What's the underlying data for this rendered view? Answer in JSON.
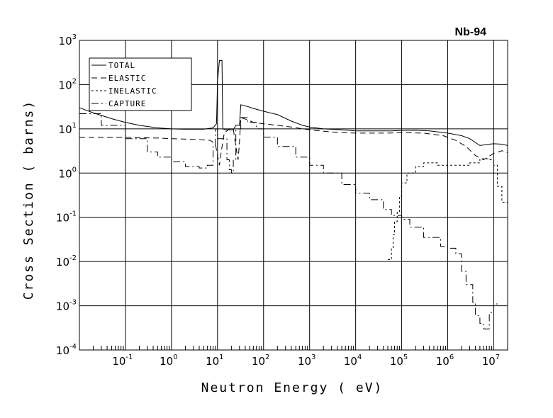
{
  "chart_data": {
    "type": "line",
    "title": "Nb-94",
    "xlabel": "Neutron Energy ( eV)",
    "ylabel": "Cross Section ( barns)",
    "x_scale": "log",
    "y_scale": "log",
    "xlim": [
      0.01,
      20000000
    ],
    "ylim": [
      0.0001,
      1000
    ],
    "grid": true,
    "legend_position": "top-left",
    "x_ticks": [
      {
        "base": "10",
        "exp": "-1",
        "value": 0.1
      },
      {
        "base": "10",
        "exp": "0",
        "value": 1
      },
      {
        "base": "10",
        "exp": "1",
        "value": 10
      },
      {
        "base": "10",
        "exp": "2",
        "value": 100
      },
      {
        "base": "10",
        "exp": "3",
        "value": 1000
      },
      {
        "base": "10",
        "exp": "4",
        "value": 10000
      },
      {
        "base": "10",
        "exp": "5",
        "value": 100000
      },
      {
        "base": "10",
        "exp": "6",
        "value": 1000000
      },
      {
        "base": "10",
        "exp": "7",
        "value": 10000000
      }
    ],
    "y_ticks": [
      {
        "base": "10",
        "exp": "-4",
        "value": 0.0001
      },
      {
        "base": "10",
        "exp": "-3",
        "value": 0.001
      },
      {
        "base": "10",
        "exp": "-2",
        "value": 0.01
      },
      {
        "base": "10",
        "exp": "-1",
        "value": 0.1
      },
      {
        "base": "10",
        "exp": "0",
        "value": 1
      },
      {
        "base": "10",
        "exp": "1",
        "value": 10
      },
      {
        "base": "10",
        "exp": "2",
        "value": 100
      },
      {
        "base": "10",
        "exp": "3",
        "value": 1000
      }
    ],
    "series": [
      {
        "name": "TOTAL",
        "dash": "",
        "points": [
          [
            0.01,
            30
          ],
          [
            0.02,
            23
          ],
          [
            0.05,
            17
          ],
          [
            0.1,
            14
          ],
          [
            0.2,
            12
          ],
          [
            0.5,
            10.5
          ],
          [
            1,
            10
          ],
          [
            2,
            9.8
          ],
          [
            5,
            9.8
          ],
          [
            8,
            10.5
          ],
          [
            9.5,
            13
          ],
          [
            10,
            120
          ],
          [
            11,
            350
          ],
          [
            12.5,
            350
          ],
          [
            13,
            10
          ],
          [
            15,
            9.5
          ],
          [
            22,
            9.5
          ],
          [
            25,
            12
          ],
          [
            30,
            12
          ],
          [
            32,
            35
          ],
          [
            45,
            32
          ],
          [
            60,
            29
          ],
          [
            100,
            25
          ],
          [
            200,
            21
          ],
          [
            400,
            15
          ],
          [
            700,
            12
          ],
          [
            1000,
            11
          ],
          [
            2000,
            10
          ],
          [
            5000,
            9.5
          ],
          [
            10000,
            9
          ],
          [
            30000,
            9
          ],
          [
            60000,
            9
          ],
          [
            100000,
            9.2
          ],
          [
            200000,
            9.3
          ],
          [
            400000,
            9
          ],
          [
            1000000,
            8
          ],
          [
            2000000,
            7
          ],
          [
            3000000,
            6
          ],
          [
            5000000,
            4.2
          ],
          [
            8000000,
            4.5
          ],
          [
            10000000,
            4.6
          ],
          [
            15000000,
            4.5
          ],
          [
            20000000,
            4.2
          ]
        ]
      },
      {
        "name": "ELASTIC",
        "dash": "8,5",
        "points": [
          [
            0.01,
            6.4
          ],
          [
            0.1,
            6.4
          ],
          [
            0.5,
            6.2
          ],
          [
            1,
            6
          ],
          [
            3,
            5.8
          ],
          [
            7,
            5.5
          ],
          [
            9,
            4.5
          ],
          [
            10,
            2.5
          ],
          [
            11,
            1.5
          ],
          [
            12,
            3
          ],
          [
            14,
            8
          ],
          [
            18,
            10
          ],
          [
            22,
            10
          ],
          [
            25,
            4
          ],
          [
            28,
            2
          ],
          [
            30,
            5
          ],
          [
            32,
            18
          ],
          [
            45,
            16
          ],
          [
            60,
            14
          ],
          [
            100,
            13
          ],
          [
            200,
            12
          ],
          [
            400,
            11
          ],
          [
            1000,
            9.5
          ],
          [
            3000,
            8.5
          ],
          [
            10000,
            8
          ],
          [
            50000,
            8
          ],
          [
            100000,
            8.2
          ],
          [
            300000,
            8
          ],
          [
            800000,
            7
          ],
          [
            1500000,
            5.5
          ],
          [
            2500000,
            4
          ],
          [
            4000000,
            2.5
          ],
          [
            6000000,
            2
          ],
          [
            10000000,
            2.8
          ],
          [
            15000000,
            3.2
          ],
          [
            20000000,
            2.9
          ]
        ]
      },
      {
        "name": "INELASTIC",
        "dash": "3,3",
        "points": [
          [
            50000,
            0.011
          ],
          [
            60000,
            0.02
          ],
          [
            65000,
            0.04
          ],
          [
            70000,
            0.08
          ],
          [
            80000,
            0.13
          ],
          [
            90000,
            0.3
          ],
          [
            100000,
            0.6
          ],
          [
            130000,
            1.0
          ],
          [
            200000,
            1.4
          ],
          [
            300000,
            1.7
          ],
          [
            600000,
            1.5
          ],
          [
            1000000,
            1.5
          ],
          [
            1500000,
            1.5
          ],
          [
            2000000,
            1.5
          ],
          [
            3000000,
            1.7
          ],
          [
            5000000,
            2.1
          ],
          [
            8000000,
            2.0
          ],
          [
            10000000,
            1.5
          ],
          [
            12000000,
            0.5
          ],
          [
            15000000,
            0.22
          ],
          [
            20000000,
            0.08
          ]
        ]
      },
      {
        "name": "CAPTURE",
        "dash": "10,4,2,4",
        "points": [
          [
            0.01,
            22
          ],
          [
            0.03,
            12
          ],
          [
            0.1,
            6
          ],
          [
            0.3,
            3
          ],
          [
            0.5,
            2.3
          ],
          [
            1,
            1.8
          ],
          [
            2,
            1.4
          ],
          [
            4,
            1.3
          ],
          [
            6,
            1.5
          ],
          [
            8,
            4
          ],
          [
            9,
            10
          ],
          [
            10,
            6
          ],
          [
            13,
            6
          ],
          [
            16,
            2
          ],
          [
            18,
            1.2
          ],
          [
            20,
            1
          ],
          [
            22,
            2
          ],
          [
            25,
            10
          ],
          [
            32,
            18
          ],
          [
            45,
            14
          ],
          [
            70,
            10
          ],
          [
            100,
            6.5
          ],
          [
            200,
            4
          ],
          [
            500,
            2.3
          ],
          [
            1000,
            1.5
          ],
          [
            2000,
            1
          ],
          [
            5000,
            0.55
          ],
          [
            10000,
            0.35
          ],
          [
            20000,
            0.25
          ],
          [
            40000,
            0.15
          ],
          [
            60000,
            0.11
          ],
          [
            100000,
            0.09
          ],
          [
            150000,
            0.06
          ],
          [
            300000,
            0.035
          ],
          [
            700000,
            0.022
          ],
          [
            1000000,
            0.02
          ],
          [
            1500000,
            0.015
          ],
          [
            2000000,
            0.006
          ],
          [
            2500000,
            0.003
          ],
          [
            3500000,
            0.0012
          ],
          [
            4000000,
            0.0006
          ],
          [
            5000000,
            0.0004
          ],
          [
            6000000,
            0.0003
          ],
          [
            8000000,
            0.0007
          ],
          [
            10000000,
            0.0011
          ],
          [
            12000000,
            0.0011
          ]
        ]
      }
    ]
  }
}
